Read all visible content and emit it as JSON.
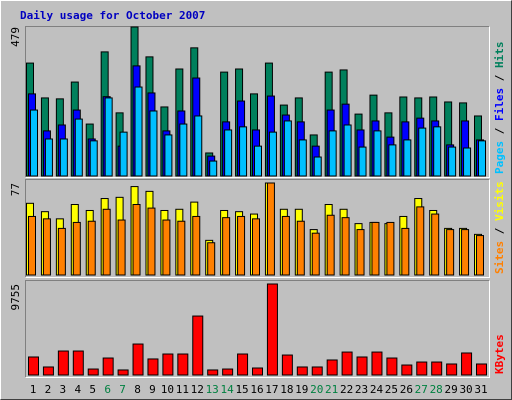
{
  "chart_data": [
    {
      "type": "bar",
      "title": "Daily usage for October 2007",
      "ylim": [
        0,
        479
      ],
      "yticks": [
        479
      ],
      "separator": "/",
      "series": [
        {
          "name": "Hits",
          "color": "#00805c",
          "values": [
            363,
            251,
            248,
            302,
            167,
            399,
            203,
            479,
            383,
            222,
            344,
            412,
            74,
            334,
            344,
            264,
            363,
            228,
            251,
            132,
            334,
            341,
            199,
            260,
            203,
            254,
            251,
            254,
            238,
            235,
            193
          ]
        },
        {
          "name": "Files",
          "color": "#0000ff",
          "values": [
            264,
            145,
            164,
            212,
            119,
            255,
            96,
            354,
            267,
            145,
            209,
            315,
            64,
            174,
            241,
            148,
            257,
            196,
            174,
            96,
            212,
            231,
            148,
            177,
            125,
            174,
            186,
            177,
            100,
            177,
            116
          ]
        },
        {
          "name": "Pages",
          "color": "#00c0ff",
          "values": [
            212,
            119,
            119,
            183,
            113,
            251,
            141,
            286,
            209,
            132,
            167,
            193,
            48,
            148,
            158,
            96,
            141,
            177,
            116,
            61,
            145,
            164,
            93,
            145,
            100,
            116,
            154,
            158,
            93,
            90,
            113
          ]
        }
      ]
    },
    {
      "type": "bar",
      "ylim": [
        0,
        77
      ],
      "yticks": [
        77
      ],
      "separator": "/",
      "series": [
        {
          "name": "Visits",
          "color": "#ffff00",
          "values": [
            60,
            53,
            47,
            59,
            54,
            64,
            65,
            74,
            70,
            54,
            55,
            61,
            29,
            54,
            53,
            51,
            77,
            55,
            55,
            38,
            59,
            55,
            43,
            44,
            43,
            49,
            64,
            54,
            39,
            39,
            34
          ]
        },
        {
          "name": "Sites",
          "color": "#ff8000",
          "values": [
            49,
            47,
            39,
            44,
            45,
            55,
            46,
            59,
            56,
            46,
            45,
            49,
            27,
            48,
            49,
            47,
            77,
            49,
            45,
            35,
            50,
            48,
            38,
            44,
            44,
            39,
            57,
            51,
            38,
            38,
            33
          ]
        }
      ]
    },
    {
      "type": "bar",
      "ylim": [
        0,
        9755
      ],
      "yticks": [
        9755
      ],
      "categories": [
        "1",
        "2",
        "3",
        "4",
        "5",
        "6",
        "7",
        "8",
        "9",
        "10",
        "11",
        "12",
        "13",
        "14",
        "15",
        "16",
        "17",
        "18",
        "19",
        "20",
        "21",
        "22",
        "23",
        "24",
        "25",
        "26",
        "27",
        "28",
        "29",
        "30",
        "31"
      ],
      "category_colors": [
        "#000000",
        "#000000",
        "#000000",
        "#000000",
        "#000000",
        "#008040",
        "#008040",
        "#000000",
        "#000000",
        "#000000",
        "#000000",
        "#000000",
        "#008040",
        "#008040",
        "#000000",
        "#000000",
        "#000000",
        "#000000",
        "#000000",
        "#008040",
        "#008040",
        "#000000",
        "#000000",
        "#000000",
        "#000000",
        "#000000",
        "#008040",
        "#008040",
        "#000000",
        "#000000",
        "#000000"
      ],
      "series": [
        {
          "name": "KBytes",
          "color": "#ff0000",
          "values": [
            1930,
            860,
            2570,
            2570,
            640,
            1820,
            540,
            3320,
            1720,
            2250,
            2250,
            6320,
            540,
            640,
            2250,
            750,
            9755,
            2140,
            860,
            860,
            1610,
            2460,
            1930,
            2460,
            1820,
            1070,
            1390,
            1390,
            1180,
            2360,
            1180
          ]
        }
      ]
    }
  ]
}
